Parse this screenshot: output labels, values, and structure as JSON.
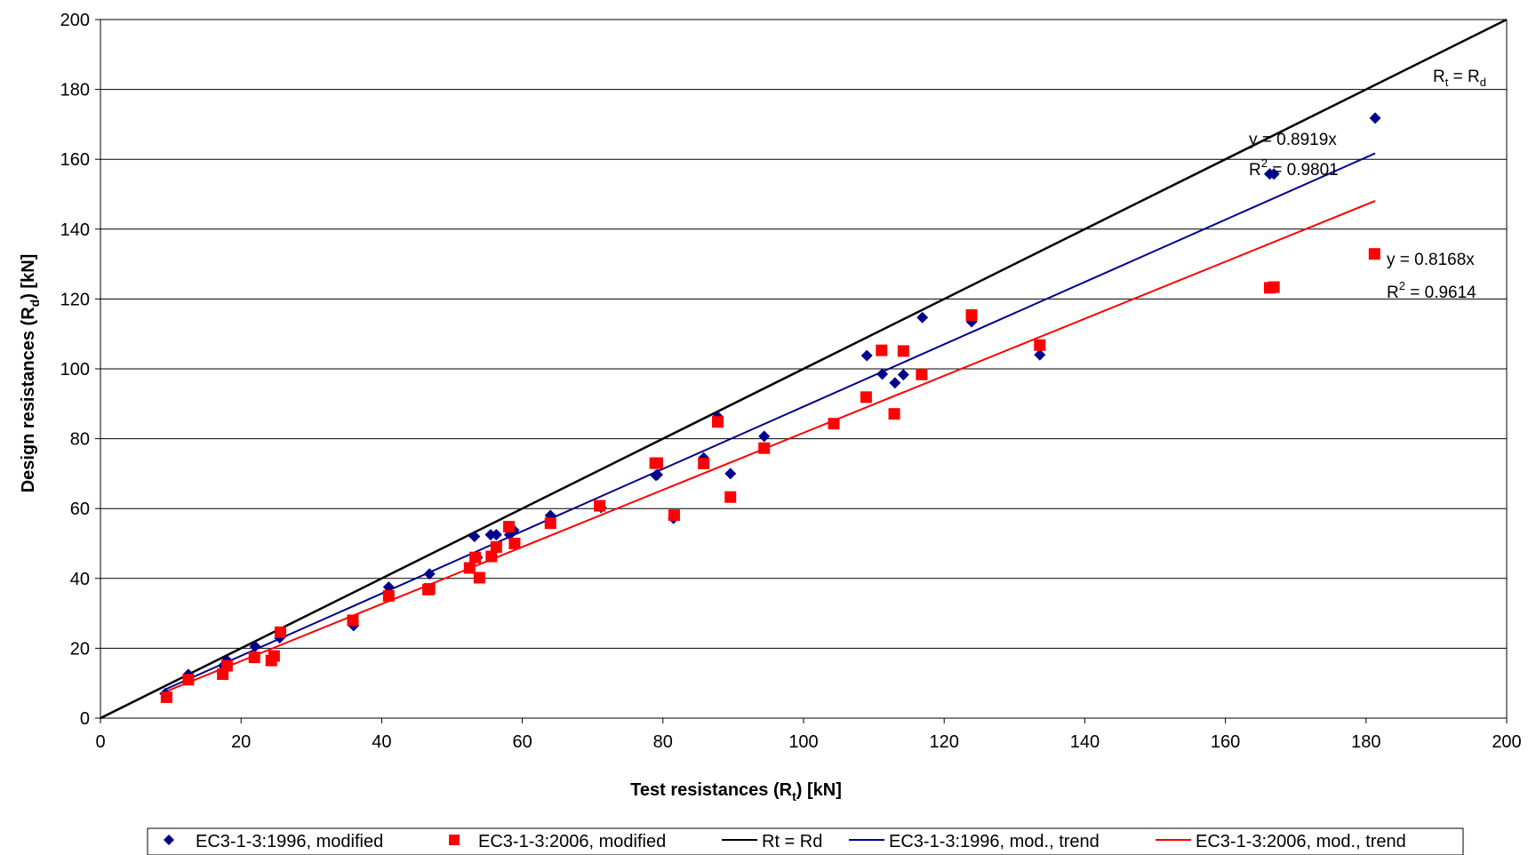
{
  "chart_data": {
    "type": "scatter",
    "xlabel": {
      "main": "Test resistances (R",
      "sub": "t",
      "tail": ") [kN]"
    },
    "ylabel": {
      "main": "Design resistances (R",
      "sub": "d",
      "tail": ") [kN]"
    },
    "xlim": [
      0,
      200
    ],
    "ylim": [
      0,
      200
    ],
    "xticks": [
      "0",
      "20",
      "40",
      "60",
      "80",
      "100",
      "120",
      "140",
      "160",
      "180",
      "200"
    ],
    "yticks": [
      "0",
      "20",
      "40",
      "60",
      "80",
      "100",
      "120",
      "140",
      "160",
      "180",
      "200"
    ],
    "grid": "horizontal",
    "legend_position": "bottom",
    "series": [
      {
        "name": "EC3-1-3:1996, modified",
        "type": "scatter",
        "marker": "diamond",
        "color": "#00008B",
        "points": [
          [
            9.2,
            7
          ],
          [
            12.5,
            12.5
          ],
          [
            17.5,
            15
          ],
          [
            18,
            16.5
          ],
          [
            22,
            20.5
          ],
          [
            25.5,
            23
          ],
          [
            36,
            26.5
          ],
          [
            41,
            37.5
          ],
          [
            46.8,
            41.3
          ],
          [
            53.2,
            52
          ],
          [
            53.6,
            46
          ],
          [
            55.5,
            52.5
          ],
          [
            56.3,
            52.5
          ],
          [
            58.2,
            52.5
          ],
          [
            58.8,
            53.8
          ],
          [
            64,
            58
          ],
          [
            71.2,
            60.3
          ],
          [
            79,
            69.5
          ],
          [
            79.2,
            69.7
          ],
          [
            81.5,
            57.2
          ],
          [
            85.8,
            74.5
          ],
          [
            87.8,
            86.3
          ],
          [
            89.6,
            70
          ],
          [
            94.4,
            80.7
          ],
          [
            109,
            103.8
          ],
          [
            111.2,
            98.5
          ],
          [
            113,
            96
          ],
          [
            114.2,
            98.3
          ],
          [
            116.9,
            114.7
          ],
          [
            123.9,
            113.5
          ],
          [
            133.6,
            104
          ],
          [
            166.3,
            155.8
          ],
          [
            166.9,
            155.8
          ],
          [
            181.3,
            171.8
          ]
        ]
      },
      {
        "name": "EC3-1-3:2006, modified",
        "type": "scatter",
        "marker": "square",
        "color": "#FF0000",
        "points": [
          [
            9.4,
            6
          ],
          [
            12.5,
            11
          ],
          [
            17.4,
            12.6
          ],
          [
            18,
            15
          ],
          [
            21.9,
            17.4
          ],
          [
            24.3,
            16.5
          ],
          [
            24.7,
            17.8
          ],
          [
            25.6,
            24.6
          ],
          [
            35.9,
            28
          ],
          [
            41,
            35
          ],
          [
            46.6,
            36.8
          ],
          [
            46.8,
            37
          ],
          [
            52.5,
            43
          ],
          [
            53.3,
            46
          ],
          [
            53.9,
            40.2
          ],
          [
            55.6,
            46.3
          ],
          [
            56.3,
            49
          ],
          [
            58.1,
            54.8
          ],
          [
            58.9,
            50
          ],
          [
            64,
            55.8
          ],
          [
            71,
            60.8
          ],
          [
            78.9,
            73
          ],
          [
            79.2,
            73
          ],
          [
            81.6,
            58.1
          ],
          [
            85.8,
            72.9
          ],
          [
            87.8,
            84.8
          ],
          [
            89.6,
            63.3
          ],
          [
            94.4,
            77.3
          ],
          [
            104.3,
            84.3
          ],
          [
            108.9,
            91.9
          ],
          [
            111.1,
            105.3
          ],
          [
            112.9,
            87.1
          ],
          [
            114.2,
            105.1
          ],
          [
            116.8,
            98.4
          ],
          [
            123.9,
            115.4
          ],
          [
            133.6,
            106.8
          ],
          [
            166.3,
            123.2
          ],
          [
            166.9,
            123.4
          ],
          [
            181.2,
            132.9
          ]
        ]
      },
      {
        "name": "Rt = Rd",
        "type": "line",
        "color": "#000000",
        "x": [
          0,
          200
        ],
        "y": [
          0,
          200
        ]
      },
      {
        "name": "EC3-1-3:1996, mod., trend",
        "type": "line",
        "color": "#00008B",
        "slope": 0.8919,
        "x": [
          9.2,
          181.3
        ]
      },
      {
        "name": "EC3-1-3:2006, mod., trend",
        "type": "line",
        "color": "#FF0000",
        "slope": 0.8168,
        "x": [
          9.2,
          181.3
        ]
      }
    ],
    "annotations": {
      "identity": {
        "a": "R",
        "a_sub": "t",
        "eq": " = R",
        "b_sub": "d"
      },
      "trend_1996": {
        "eq": "y = 0.8919x",
        "r2_label": "R",
        "r2_sup": "2",
        "r2_value": " = 0.9801"
      },
      "trend_2006": {
        "eq": "y = 0.8168x",
        "r2_label": "R",
        "r2_sup": "2",
        "r2_value": " = 0.9614"
      }
    }
  }
}
